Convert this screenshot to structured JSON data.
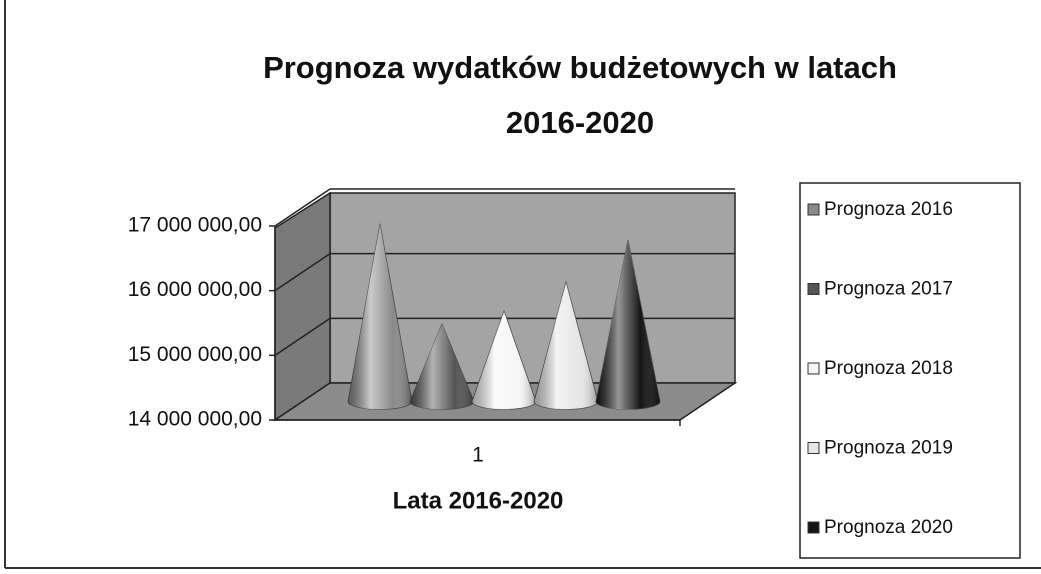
{
  "chart_data": {
    "type": "cone3d",
    "title": "Prognoza wydatków budżetowych w latach",
    "title_line2": "2016-2020",
    "x_label": "Lata 2016-2020",
    "categories": [
      "1"
    ],
    "series": [
      {
        "name": "Prognoza 2016",
        "color": "#8a8a8a",
        "values": [
          16750000
        ]
      },
      {
        "name": "Prognoza 2017",
        "color": "#555555",
        "values": [
          15200000
        ]
      },
      {
        "name": "Prognoza 2018",
        "color": "#f6f6f6",
        "values": [
          15400000
        ]
      },
      {
        "name": "Prognoza 2019",
        "color": "#e6e6e6",
        "values": [
          15850000
        ]
      },
      {
        "name": "Prognoza 2020",
        "color": "#151515",
        "values": [
          16500000
        ]
      }
    ],
    "ylim": [
      14000000,
      17000000
    ],
    "yticks": [
      {
        "value": 14000000,
        "label": "14 000 000,00"
      },
      {
        "value": 15000000,
        "label": "15 000 000,00"
      },
      {
        "value": 16000000,
        "label": "16 000 000,00"
      },
      {
        "value": 17000000,
        "label": "17 000 000,00"
      }
    ],
    "grid": true,
    "legend": "right"
  }
}
